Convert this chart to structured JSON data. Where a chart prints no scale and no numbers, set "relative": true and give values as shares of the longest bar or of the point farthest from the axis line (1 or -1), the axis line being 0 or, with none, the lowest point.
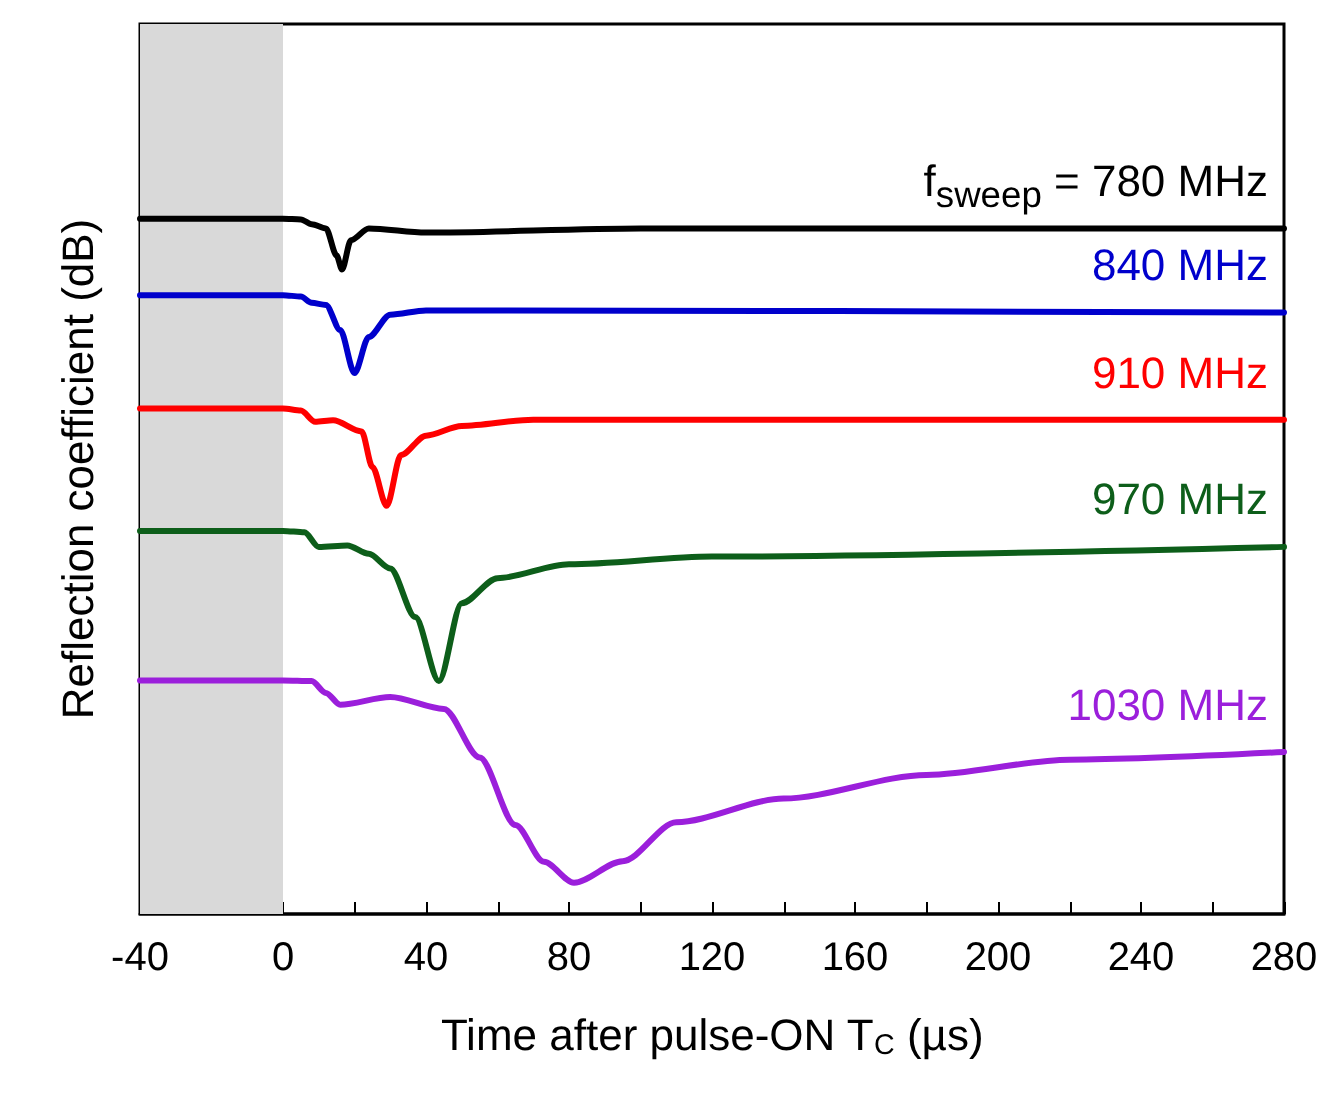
{
  "chart_data": {
    "type": "line",
    "relative": true,
    "xlabel": "Time after pulse-ON T$_{C}$ (µs)",
    "ylabel": "Reflection coefficient (dB)",
    "xlim": [
      -40,
      280
    ],
    "xticks": [
      -40,
      {
        "value": -20,
        "label": null
      },
      0,
      {
        "value": 20,
        "label": null
      },
      40,
      {
        "value": 60,
        "label": null
      },
      80,
      {
        "value": 100,
        "label": null
      },
      120,
      {
        "value": 140,
        "label": null
      },
      160,
      {
        "value": 180,
        "label": null
      },
      200,
      {
        "value": 220,
        "label": null
      },
      240,
      {
        "value": 260,
        "label": null
      },
      280
    ],
    "grid": false,
    "legend": false,
    "marker": "none",
    "line_style": "solid",
    "bands": [
      {
        "axis": "x",
        "from": -40,
        "to": 0,
        "color": "#d9d9d9"
      }
    ],
    "series": [
      {
        "name": "f$_{sweep}$ = 780 MHz",
        "color": "#000000",
        "x": [
          -40,
          0,
          5,
          8,
          12,
          15,
          16.5,
          19,
          24,
          40,
          100,
          280
        ],
        "values": [
          1.0,
          1.0,
          0.999,
          0.992,
          0.986,
          0.947,
          0.927,
          0.969,
          0.986,
          0.98,
          0.986,
          0.986
        ]
      },
      {
        "name": "840 MHz",
        "color": "#0000cc",
        "x": [
          -40,
          0,
          5,
          8,
          12,
          16,
          20,
          24,
          30,
          40,
          60,
          280
        ],
        "values": [
          0.89,
          0.89,
          0.888,
          0.879,
          0.876,
          0.84,
          0.778,
          0.83,
          0.862,
          0.868,
          0.868,
          0.865
        ]
      },
      {
        "name": "910 MHz",
        "color": "#ff0000",
        "x": [
          -40,
          0,
          5,
          9,
          14,
          22,
          25,
          29,
          33,
          40,
          50,
          70,
          280
        ],
        "values": [
          0.727,
          0.727,
          0.724,
          0.708,
          0.71,
          0.694,
          0.643,
          0.587,
          0.66,
          0.688,
          0.702,
          0.711,
          0.711
        ]
      },
      {
        "name": "970 MHz",
        "color": "#0d5e1a",
        "x": [
          -40,
          0,
          6,
          10,
          18,
          24,
          30,
          37,
          43.6,
          50,
          60,
          80,
          120,
          280
        ],
        "values": [
          0.551,
          0.551,
          0.549,
          0.528,
          0.53,
          0.518,
          0.497,
          0.427,
          0.335,
          0.447,
          0.483,
          0.503,
          0.514,
          0.528
        ]
      },
      {
        "name": "1030 MHz",
        "color": "#9b1fdb",
        "x": [
          -40,
          0,
          8,
          12,
          16,
          30,
          45,
          55,
          65,
          73,
          81.4,
          95,
          110,
          140,
          180,
          220,
          280
        ],
        "values": [
          0.336,
          0.336,
          0.335,
          0.318,
          0.301,
          0.312,
          0.295,
          0.225,
          0.128,
          0.075,
          0.045,
          0.076,
          0.132,
          0.166,
          0.2,
          0.222,
          0.233
        ]
      }
    ]
  }
}
